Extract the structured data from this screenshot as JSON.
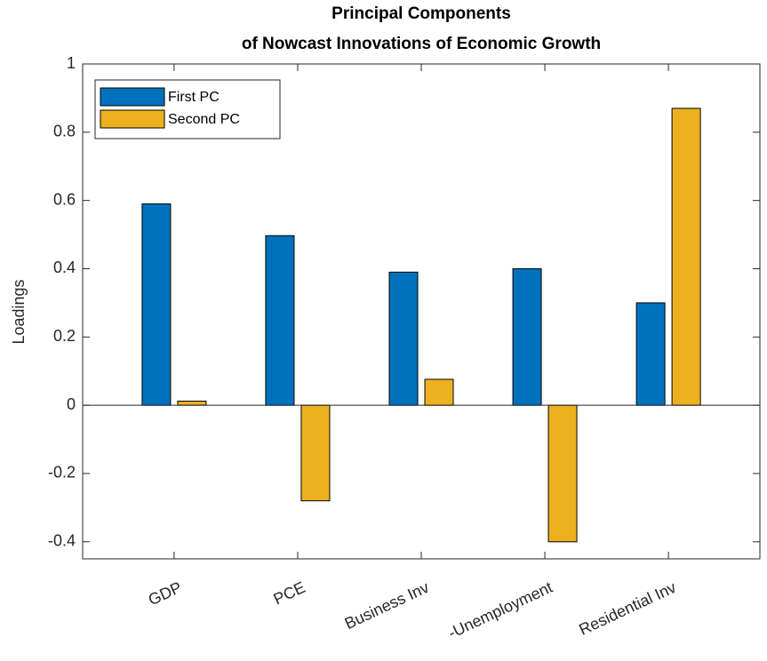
{
  "chart_data": {
    "type": "bar",
    "title": [
      "Principal Components",
      "of Nowcast Innovations of Economic Growth"
    ],
    "y_label": "Loadings",
    "categories": [
      "GDP",
      "PCE",
      "Business Inv",
      "-Unemployment",
      "Residential Inv"
    ],
    "series": [
      {
        "name": "First PC",
        "color": "#0072bd",
        "values": [
          0.59,
          0.497,
          0.39,
          0.4,
          0.3
        ]
      },
      {
        "name": "Second PC",
        "color": "#edb120",
        "values": [
          0.012,
          -0.28,
          0.076,
          -0.4,
          0.87
        ]
      }
    ],
    "ylim": [
      -0.45,
      1
    ],
    "yticks": [
      -0.4,
      -0.2,
      0,
      0.2,
      0.4,
      0.6,
      0.8,
      1
    ],
    "legend": "upper-left"
  }
}
